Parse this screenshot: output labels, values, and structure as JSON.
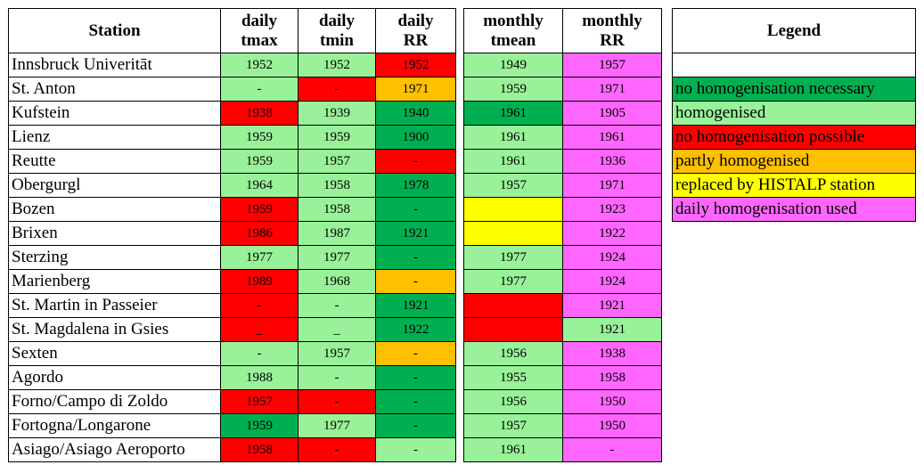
{
  "daily_table": {
    "headers": {
      "station": "Station",
      "tmax": [
        "daily",
        "tmax"
      ],
      "tmin": [
        "daily",
        "tmin"
      ],
      "rr": [
        "daily",
        "RR"
      ]
    },
    "rows": [
      {
        "station": "Innsbruck Univeritāt",
        "tmax": {
          "v": "1952",
          "c": "lg"
        },
        "tmin": {
          "v": "1952",
          "c": "lg"
        },
        "rr": {
          "v": "1952",
          "c": "rd"
        }
      },
      {
        "station": "St. Anton",
        "tmax": {
          "v": "-",
          "c": "lg"
        },
        "tmin": {
          "v": "-",
          "c": "rd"
        },
        "rr": {
          "v": "1971",
          "c": "or"
        }
      },
      {
        "station": "Kufstein",
        "tmax": {
          "v": "1938",
          "c": "rd"
        },
        "tmin": {
          "v": "1939",
          "c": "lg"
        },
        "rr": {
          "v": "1940",
          "c": "dg"
        }
      },
      {
        "station": "Lienz",
        "tmax": {
          "v": "1959",
          "c": "lg"
        },
        "tmin": {
          "v": "1959",
          "c": "lg"
        },
        "rr": {
          "v": "1900",
          "c": "dg"
        }
      },
      {
        "station": "Reutte",
        "tmax": {
          "v": "1959",
          "c": "lg"
        },
        "tmin": {
          "v": "1957",
          "c": "lg"
        },
        "rr": {
          "v": "-",
          "c": "rd"
        }
      },
      {
        "station": "Obergurgl",
        "tmax": {
          "v": "1964",
          "c": "lg"
        },
        "tmin": {
          "v": "1958",
          "c": "lg"
        },
        "rr": {
          "v": "1978",
          "c": "dg"
        }
      },
      {
        "station": "Bozen",
        "tmax": {
          "v": "1959",
          "c": "rd"
        },
        "tmin": {
          "v": "1958",
          "c": "lg"
        },
        "rr": {
          "v": "-",
          "c": "dg"
        }
      },
      {
        "station": "Brixen",
        "tmax": {
          "v": "1986",
          "c": "rd"
        },
        "tmin": {
          "v": "1987",
          "c": "lg"
        },
        "rr": {
          "v": "1921",
          "c": "dg"
        }
      },
      {
        "station": "Sterzing",
        "tmax": {
          "v": "1977",
          "c": "lg"
        },
        "tmin": {
          "v": "1977",
          "c": "lg"
        },
        "rr": {
          "v": "-",
          "c": "dg"
        }
      },
      {
        "station": "Marienberg",
        "tmax": {
          "v": "1989",
          "c": "rd"
        },
        "tmin": {
          "v": "1968",
          "c": "lg"
        },
        "rr": {
          "v": "-",
          "c": "or"
        }
      },
      {
        "station": "St. Martin in Passeier",
        "tmax": {
          "v": "-",
          "c": "rd"
        },
        "tmin": {
          "v": "-",
          "c": "lg"
        },
        "rr": {
          "v": "1921",
          "c": "dg"
        }
      },
      {
        "station": "St. Magdalena in Gsies",
        "tmax": {
          "v": "_",
          "c": "rd"
        },
        "tmin": {
          "v": "_",
          "c": "lg"
        },
        "rr": {
          "v": "1922",
          "c": "dg"
        }
      },
      {
        "station": "Sexten",
        "tmax": {
          "v": "-",
          "c": "lg"
        },
        "tmin": {
          "v": "1957",
          "c": "lg"
        },
        "rr": {
          "v": "-",
          "c": "or"
        }
      },
      {
        "station": "Agordo",
        "tmax": {
          "v": "1988",
          "c": "lg"
        },
        "tmin": {
          "v": "-",
          "c": "lg"
        },
        "rr": {
          "v": "-",
          "c": "dg"
        }
      },
      {
        "station": "Forno/Campo di Zoldo",
        "tmax": {
          "v": "1957",
          "c": "rd"
        },
        "tmin": {
          "v": "-",
          "c": "rd"
        },
        "rr": {
          "v": "-",
          "c": "dg"
        }
      },
      {
        "station": "Fortogna/Longarone",
        "tmax": {
          "v": "1959",
          "c": "dg"
        },
        "tmin": {
          "v": "1977",
          "c": "lg"
        },
        "rr": {
          "v": "-",
          "c": "dg"
        }
      },
      {
        "station": "Asiago/Asiago Aeroporto",
        "tmax": {
          "v": "1958",
          "c": "rd"
        },
        "tmin": {
          "v": "-",
          "c": "rd"
        },
        "rr": {
          "v": "-",
          "c": "lg"
        }
      }
    ]
  },
  "monthly_table": {
    "headers": {
      "tmean": [
        "monthly",
        "tmean"
      ],
      "rr": [
        "monthly",
        "RR"
      ]
    },
    "rows": [
      {
        "tmean": {
          "v": "1949",
          "c": "lg"
        },
        "rr": {
          "v": "1957",
          "c": "mg"
        }
      },
      {
        "tmean": {
          "v": "1959",
          "c": "lg"
        },
        "rr": {
          "v": "1971",
          "c": "mg"
        }
      },
      {
        "tmean": {
          "v": "1961",
          "c": "dg"
        },
        "rr": {
          "v": "1905",
          "c": "mg"
        }
      },
      {
        "tmean": {
          "v": "1961",
          "c": "lg"
        },
        "rr": {
          "v": "1961",
          "c": "mg"
        }
      },
      {
        "tmean": {
          "v": "1961",
          "c": "lg"
        },
        "rr": {
          "v": "1936",
          "c": "mg"
        }
      },
      {
        "tmean": {
          "v": "1957",
          "c": "lg"
        },
        "rr": {
          "v": "1971",
          "c": "mg"
        }
      },
      {
        "tmean": {
          "v": "",
          "c": "ye"
        },
        "rr": {
          "v": "1923",
          "c": "mg"
        }
      },
      {
        "tmean": {
          "v": "",
          "c": "ye"
        },
        "rr": {
          "v": "1922",
          "c": "mg"
        }
      },
      {
        "tmean": {
          "v": "1977",
          "c": "lg"
        },
        "rr": {
          "v": "1924",
          "c": "mg"
        }
      },
      {
        "tmean": {
          "v": "1977",
          "c": "lg"
        },
        "rr": {
          "v": "1924",
          "c": "mg"
        }
      },
      {
        "tmean": {
          "v": "",
          "c": "rd"
        },
        "rr": {
          "v": "1921",
          "c": "mg"
        }
      },
      {
        "tmean": {
          "v": "",
          "c": "rd"
        },
        "rr": {
          "v": "1921",
          "c": "lg"
        }
      },
      {
        "tmean": {
          "v": "1956",
          "c": "lg"
        },
        "rr": {
          "v": "1938",
          "c": "mg"
        }
      },
      {
        "tmean": {
          "v": "1955",
          "c": "lg"
        },
        "rr": {
          "v": "1958",
          "c": "mg"
        }
      },
      {
        "tmean": {
          "v": "1956",
          "c": "lg"
        },
        "rr": {
          "v": "1950",
          "c": "mg"
        }
      },
      {
        "tmean": {
          "v": "1957",
          "c": "lg"
        },
        "rr": {
          "v": "1950",
          "c": "mg"
        }
      },
      {
        "tmean": {
          "v": "1961",
          "c": "lg"
        },
        "rr": {
          "v": "-",
          "c": "mg"
        }
      }
    ]
  },
  "legend": {
    "title": "Legend",
    "items": [
      {
        "label": "",
        "c": "wh"
      },
      {
        "label": "no homogenisation necessary",
        "c": "dg"
      },
      {
        "label": "homogenised",
        "c": "lg"
      },
      {
        "label": "no homogenisation possible",
        "c": "rd"
      },
      {
        "label": "partly homogenised",
        "c": "or"
      },
      {
        "label": "replaced by HISTALP station",
        "c": "ye"
      },
      {
        "label": "daily homogenisation used",
        "c": "mg"
      }
    ]
  },
  "colors": {
    "dg": "#00b050",
    "lg": "#99f199",
    "rd": "#ff0000",
    "or": "#ffc000",
    "ye": "#ffff00",
    "mg": "#ff66ff",
    "wh": "#ffffff"
  }
}
